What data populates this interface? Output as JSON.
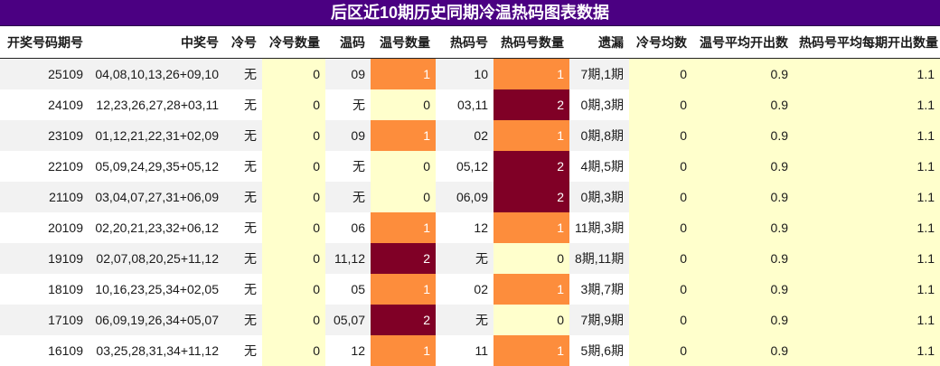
{
  "title": "后区近10期历史同期冷温热码图表数据",
  "columns": [
    "开奖号码期号",
    "中奖号",
    "冷号",
    "冷号数量",
    "温码",
    "温号数量",
    "热码号",
    "热码号数量",
    "遗漏",
    "冷号均数",
    "温号平均开出数",
    "热码号平均每期开出数量"
  ],
  "rows": [
    {
      "issue": "25109",
      "numbers": "04,08,10,13,26+09,10",
      "cold": "无",
      "cold_count": "0",
      "warm": "09",
      "warm_count": "1",
      "hot": "10",
      "hot_count": "1",
      "miss": "7期,1期",
      "cold_avg": "0",
      "warm_avg": "0.9",
      "hot_avg": "1.1"
    },
    {
      "issue": "24109",
      "numbers": "12,23,26,27,28+03,11",
      "cold": "无",
      "cold_count": "0",
      "warm": "无",
      "warm_count": "0",
      "hot": "03,11",
      "hot_count": "2",
      "miss": "0期,3期",
      "cold_avg": "0",
      "warm_avg": "0.9",
      "hot_avg": "1.1"
    },
    {
      "issue": "23109",
      "numbers": "01,12,21,22,31+02,09",
      "cold": "无",
      "cold_count": "0",
      "warm": "09",
      "warm_count": "1",
      "hot": "02",
      "hot_count": "1",
      "miss": "0期,8期",
      "cold_avg": "0",
      "warm_avg": "0.9",
      "hot_avg": "1.1"
    },
    {
      "issue": "22109",
      "numbers": "05,09,24,29,35+05,12",
      "cold": "无",
      "cold_count": "0",
      "warm": "无",
      "warm_count": "0",
      "hot": "05,12",
      "hot_count": "2",
      "miss": "4期,5期",
      "cold_avg": "0",
      "warm_avg": "0.9",
      "hot_avg": "1.1"
    },
    {
      "issue": "21109",
      "numbers": "03,04,07,27,31+06,09",
      "cold": "无",
      "cold_count": "0",
      "warm": "无",
      "warm_count": "0",
      "hot": "06,09",
      "hot_count": "2",
      "miss": "0期,3期",
      "cold_avg": "0",
      "warm_avg": "0.9",
      "hot_avg": "1.1"
    },
    {
      "issue": "20109",
      "numbers": "02,20,21,23,32+06,12",
      "cold": "无",
      "cold_count": "0",
      "warm": "06",
      "warm_count": "1",
      "hot": "12",
      "hot_count": "1",
      "miss": "11期,3期",
      "cold_avg": "0",
      "warm_avg": "0.9",
      "hot_avg": "1.1"
    },
    {
      "issue": "19109",
      "numbers": "02,07,08,20,25+11,12",
      "cold": "无",
      "cold_count": "0",
      "warm": "11,12",
      "warm_count": "2",
      "hot": "无",
      "hot_count": "0",
      "miss": "8期,11期",
      "cold_avg": "0",
      "warm_avg": "0.9",
      "hot_avg": "1.1"
    },
    {
      "issue": "18109",
      "numbers": "10,16,23,25,34+02,05",
      "cold": "无",
      "cold_count": "0",
      "warm": "05",
      "warm_count": "1",
      "hot": "02",
      "hot_count": "1",
      "miss": "3期,7期",
      "cold_avg": "0",
      "warm_avg": "0.9",
      "hot_avg": "1.1"
    },
    {
      "issue": "17109",
      "numbers": "06,09,19,26,34+05,07",
      "cold": "无",
      "cold_count": "0",
      "warm": "05,07",
      "warm_count": "2",
      "hot": "无",
      "hot_count": "0",
      "miss": "7期,9期",
      "cold_avg": "0",
      "warm_avg": "0.9",
      "hot_avg": "1.1"
    },
    {
      "issue": "16109",
      "numbers": "03,25,28,31,34+11,12",
      "cold": "无",
      "cold_count": "0",
      "warm": "12",
      "warm_count": "1",
      "hot": "11",
      "hot_count": "1",
      "miss": "5期,6期",
      "cold_avg": "0",
      "warm_avg": "0.9",
      "hot_avg": "1.1"
    }
  ],
  "colors": {
    "title_bg": "#4b0082",
    "level_0": "#ffffcc",
    "level_1": "#fd8d3c",
    "level_2": "#800026",
    "row_alt": "#f2f2f2"
  }
}
